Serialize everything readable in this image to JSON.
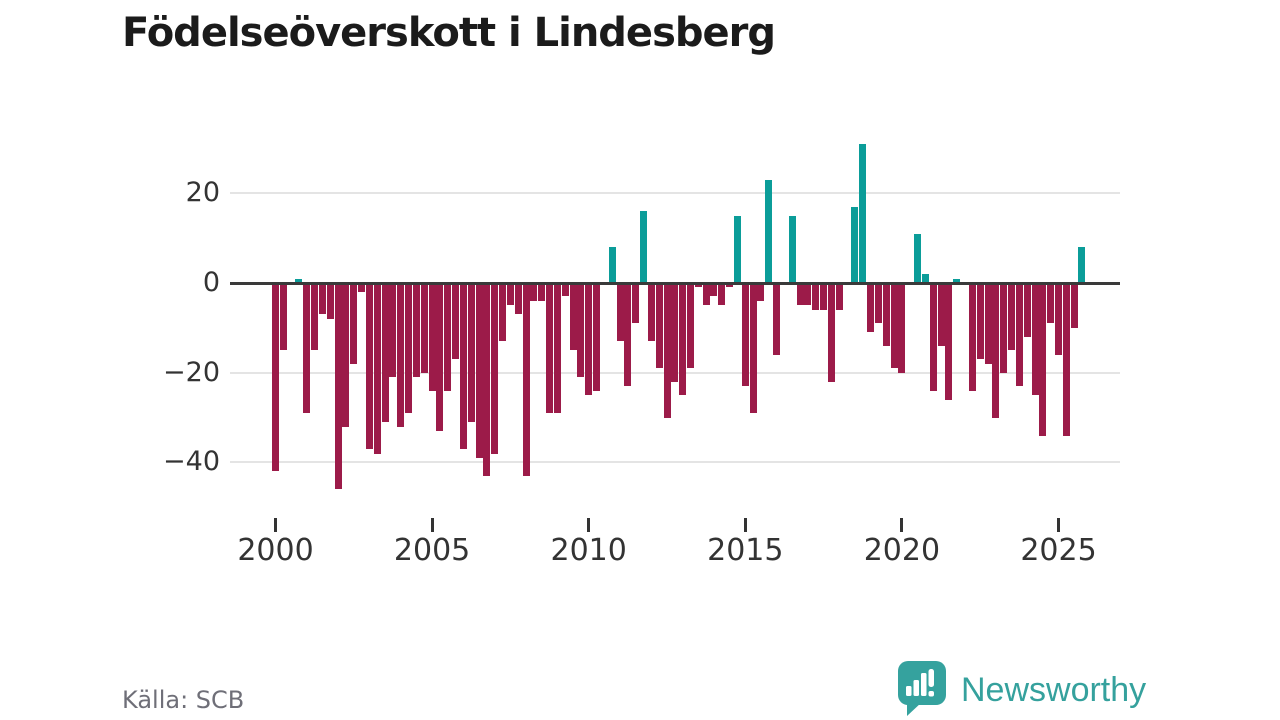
{
  "title": "Födelseöverskott i Lindesberg",
  "source": "Källa: SCB",
  "logo": {
    "text": "Newsworthy",
    "icon": "newsworthy-speech-bubble-chart-icon"
  },
  "colors": {
    "positive_bar": "#0b9d99",
    "negative_bar": "#9c1b49",
    "zero_line": "#3a3a3a",
    "gridline": "#e4e4e4",
    "axis_text": "#333333",
    "title_text": "#1b1b1b",
    "source_text": "#6f6f78",
    "logo_teal": "#35a19d"
  },
  "chart_data": {
    "type": "bar",
    "title": "Födelseöverskott i Lindesberg",
    "xlabel": "",
    "ylabel": "",
    "ylim": [
      -48,
      33
    ],
    "grid": "horizontal",
    "legend": "none",
    "y_axis": {
      "tick_values": [
        20,
        0,
        -20,
        -40
      ],
      "tick_labels": [
        "20",
        "0",
        "−20",
        "−40"
      ]
    },
    "x_axis": {
      "tick_labels": [
        "2000",
        "2005",
        "2010",
        "2015",
        "2020",
        "2025"
      ]
    },
    "frequency": "quarterly",
    "years": [
      {
        "year": 2000,
        "values": [
          -42,
          -15,
          0,
          1
        ]
      },
      {
        "year": 2001,
        "values": [
          -29,
          -15,
          -7,
          -8
        ]
      },
      {
        "year": 2002,
        "values": [
          -46,
          -32,
          -18,
          -2
        ]
      },
      {
        "year": 2003,
        "values": [
          -37,
          -38,
          -31,
          -21
        ]
      },
      {
        "year": 2004,
        "values": [
          -32,
          -29,
          -21,
          -20
        ]
      },
      {
        "year": 2005,
        "values": [
          -24,
          -33,
          -24,
          -17
        ]
      },
      {
        "year": 2006,
        "values": [
          -37,
          -31,
          -39,
          -43
        ]
      },
      {
        "year": 2007,
        "values": [
          -38,
          -13,
          -5,
          -7
        ]
      },
      {
        "year": 2008,
        "values": [
          -43,
          -4,
          -4,
          -29
        ]
      },
      {
        "year": 2009,
        "values": [
          -29,
          -3,
          -15,
          -21
        ]
      },
      {
        "year": 2010,
        "values": [
          -25,
          -24,
          0,
          8
        ]
      },
      {
        "year": 2011,
        "values": [
          -13,
          -23,
          -9,
          16
        ]
      },
      {
        "year": 2012,
        "values": [
          -13,
          -19,
          -30,
          -22
        ]
      },
      {
        "year": 2013,
        "values": [
          -25,
          -19,
          -1,
          -5
        ]
      },
      {
        "year": 2014,
        "values": [
          -3,
          -5,
          -1,
          15
        ]
      },
      {
        "year": 2015,
        "values": [
          -23,
          -29,
          -4,
          23
        ]
      },
      {
        "year": 2016,
        "values": [
          -16,
          0,
          15,
          -5
        ]
      },
      {
        "year": 2017,
        "values": [
          -5,
          -6,
          -6,
          -22
        ]
      },
      {
        "year": 2018,
        "values": [
          -6,
          0,
          17,
          31
        ]
      },
      {
        "year": 2019,
        "values": [
          -11,
          -9,
          -14,
          -19
        ]
      },
      {
        "year": 2020,
        "values": [
          -20,
          0,
          11,
          2
        ]
      },
      {
        "year": 2021,
        "values": [
          -24,
          -14,
          -26,
          1
        ]
      },
      {
        "year": 2022,
        "values": [
          0,
          -24,
          -17,
          -18
        ]
      },
      {
        "year": 2023,
        "values": [
          -30,
          -20,
          -15,
          -23
        ]
      },
      {
        "year": 2024,
        "values": [
          -12,
          -25,
          -34,
          -9
        ]
      },
      {
        "year": 2025,
        "values": [
          -16,
          -34,
          -10,
          8
        ]
      }
    ]
  }
}
